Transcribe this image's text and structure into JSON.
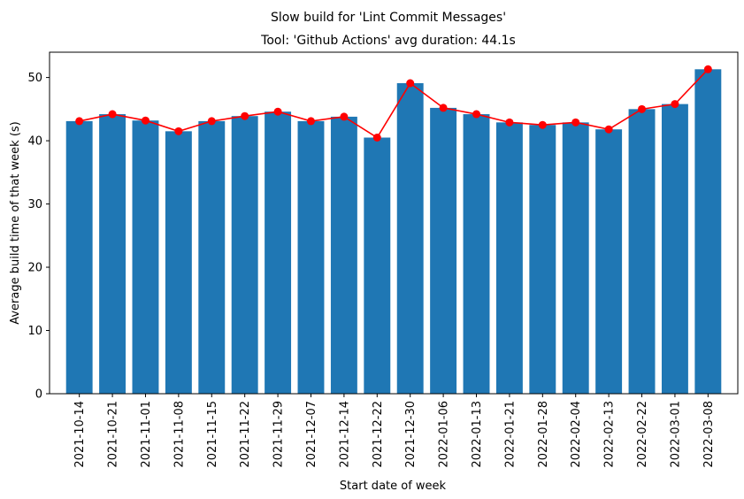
{
  "chart_data": {
    "type": "bar",
    "title": "Slow build for 'Lint Commit Messages'",
    "subtitle": "Tool: 'Github Actions' avg duration: 44.1s",
    "xlabel": "Start date of week",
    "ylabel": "Average build time of that week (s)",
    "ylim": [
      0,
      54
    ],
    "yticks": [
      0,
      10,
      20,
      30,
      40,
      50
    ],
    "grid": false,
    "categories": [
      "2021-10-14",
      "2021-10-21",
      "2021-11-01",
      "2021-11-08",
      "2021-11-15",
      "2021-11-22",
      "2021-11-29",
      "2021-12-07",
      "2021-12-14",
      "2021-12-22",
      "2021-12-30",
      "2022-01-06",
      "2022-01-13",
      "2022-01-21",
      "2022-01-28",
      "2022-02-04",
      "2022-02-13",
      "2022-02-22",
      "2022-03-01",
      "2022-03-08"
    ],
    "values": [
      43.1,
      44.2,
      43.2,
      41.5,
      43.1,
      43.9,
      44.6,
      43.1,
      43.8,
      40.5,
      49.1,
      45.2,
      44.2,
      42.9,
      42.5,
      42.9,
      41.8,
      45.0,
      45.8,
      51.3
    ],
    "bar_color": "#1f77b4",
    "line_color": "#ff0000"
  }
}
